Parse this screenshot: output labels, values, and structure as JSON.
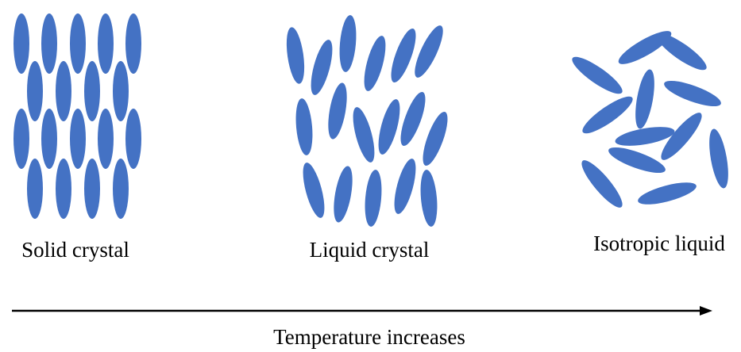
{
  "labels": {
    "solid": "Solid crystal",
    "liquid_crystal": "Liquid crystal",
    "isotropic": "Isotropic liquid"
  },
  "arrow": {
    "label": "Temperature increases"
  }
}
